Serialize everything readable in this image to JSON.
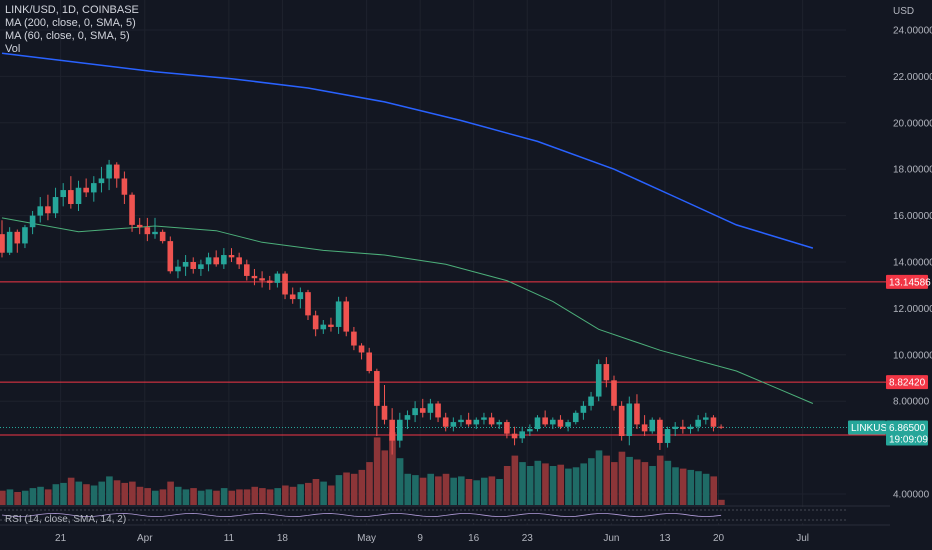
{
  "legend": {
    "symbol": "LINK/USD, 1D, COINBASE",
    "ma200": "MA (200, close, 0, SMA, 5)",
    "ma60": "MA (60, close, 0, SMA, 5)",
    "vol": "Vol"
  },
  "rsi_label": "RSI (14, close, SMA, 14, 2)",
  "colors": {
    "background": "#131722",
    "up": "#26a69a",
    "down": "#ef5350",
    "vol_up": "#1f6b66",
    "vol_down": "#8c3538",
    "ma200": "#2962ff",
    "ma60": "#4caf7a",
    "hline": "#f23645",
    "last_price": "#26a69a"
  },
  "chart_data": {
    "type": "candlestick",
    "currency": "USD",
    "y_ticks": [
      "24.00000",
      "22.00000",
      "20.00000",
      "18.00000",
      "16.00000",
      "14.00000",
      "12.00000",
      "10.00000",
      "8.00000",
      "4.00000"
    ],
    "ylim": [
      3.4,
      24.8
    ],
    "x_ticks": [
      "21",
      "Apr",
      "11",
      "18",
      "May",
      "9",
      "16",
      "23",
      "Jun",
      "13",
      "20",
      "Jul"
    ],
    "horizontal_levels": [
      {
        "value": 13.14586,
        "label": "13.14586"
      },
      {
        "value": 8.8242,
        "label": "8.82420"
      },
      {
        "value": 6.54464,
        "label": "6.54464"
      }
    ],
    "last_price": {
      "symbol": "LINKUSD",
      "value": 6.865,
      "label": "6.86500",
      "countdown": "19:09:09"
    },
    "candles": [
      [
        15.2,
        15.8,
        14.2,
        14.4
      ],
      [
        14.4,
        15.5,
        14.3,
        15.3
      ],
      [
        15.3,
        15.4,
        14.4,
        14.8
      ],
      [
        14.8,
        15.6,
        14.6,
        15.5
      ],
      [
        15.5,
        16.2,
        15.2,
        16.0
      ],
      [
        16.0,
        16.8,
        15.7,
        16.4
      ],
      [
        16.4,
        16.9,
        15.8,
        16.1
      ],
      [
        16.1,
        17.2,
        15.9,
        16.8
      ],
      [
        16.8,
        17.4,
        16.4,
        17.1
      ],
      [
        17.1,
        17.7,
        16.3,
        16.5
      ],
      [
        16.5,
        17.5,
        16.2,
        17.2
      ],
      [
        17.2,
        17.6,
        16.8,
        17.0
      ],
      [
        17.0,
        17.7,
        16.6,
        17.4
      ],
      [
        17.4,
        18.1,
        17.0,
        17.6
      ],
      [
        17.6,
        18.4,
        17.1,
        18.2
      ],
      [
        18.2,
        18.3,
        17.2,
        17.6
      ],
      [
        17.6,
        17.9,
        16.5,
        16.9
      ],
      [
        16.9,
        17.0,
        15.3,
        15.6
      ],
      [
        15.6,
        15.9,
        15.2,
        15.5
      ],
      [
        15.5,
        15.9,
        14.9,
        15.2
      ],
      [
        15.2,
        15.9,
        15.0,
        15.3
      ],
      [
        15.3,
        15.4,
        14.8,
        14.9
      ],
      [
        14.9,
        15.1,
        13.5,
        13.6
      ],
      [
        13.6,
        14.1,
        13.3,
        13.8
      ],
      [
        13.8,
        14.3,
        13.4,
        14.0
      ],
      [
        14.0,
        14.2,
        13.5,
        13.7
      ],
      [
        13.7,
        14.1,
        13.4,
        13.9
      ],
      [
        13.9,
        14.4,
        13.6,
        14.2
      ],
      [
        14.2,
        14.5,
        13.8,
        13.9
      ],
      [
        13.9,
        14.6,
        13.7,
        14.3
      ],
      [
        14.3,
        14.6,
        14.0,
        14.2
      ],
      [
        14.2,
        14.4,
        13.7,
        13.9
      ],
      [
        13.9,
        14.1,
        13.2,
        13.4
      ],
      [
        13.4,
        13.7,
        13.0,
        13.3
      ],
      [
        13.3,
        13.6,
        12.9,
        13.2
      ],
      [
        13.2,
        13.4,
        12.8,
        13.1
      ],
      [
        13.1,
        13.6,
        12.9,
        13.5
      ],
      [
        13.5,
        13.6,
        12.4,
        12.6
      ],
      [
        12.6,
        12.9,
        12.2,
        12.4
      ],
      [
        12.4,
        12.9,
        12.0,
        12.7
      ],
      [
        12.7,
        12.8,
        11.5,
        11.7
      ],
      [
        11.7,
        11.9,
        10.8,
        11.1
      ],
      [
        11.1,
        11.5,
        10.9,
        11.3
      ],
      [
        11.3,
        11.6,
        11.0,
        11.2
      ],
      [
        11.2,
        12.5,
        10.9,
        12.3
      ],
      [
        12.3,
        12.5,
        10.8,
        11.0
      ],
      [
        11.0,
        11.2,
        10.2,
        10.4
      ],
      [
        10.4,
        10.5,
        9.8,
        10.1
      ],
      [
        10.1,
        10.3,
        9.2,
        9.3
      ],
      [
        9.3,
        9.4,
        6.5,
        7.8
      ],
      [
        7.8,
        8.7,
        7.0,
        7.2
      ],
      [
        7.2,
        7.7,
        5.7,
        6.3
      ],
      [
        6.3,
        7.5,
        6.0,
        7.2
      ],
      [
        7.2,
        7.6,
        6.8,
        7.4
      ],
      [
        7.4,
        8.0,
        7.1,
        7.7
      ],
      [
        7.7,
        8.1,
        7.3,
        7.5
      ],
      [
        7.5,
        8.1,
        7.2,
        7.9
      ],
      [
        7.9,
        8.0,
        7.1,
        7.3
      ],
      [
        7.3,
        7.5,
        6.7,
        6.9
      ],
      [
        6.9,
        7.3,
        6.7,
        7.1
      ],
      [
        7.1,
        7.4,
        6.9,
        7.2
      ],
      [
        7.2,
        7.5,
        6.9,
        7.0
      ],
      [
        7.0,
        7.3,
        6.8,
        7.2
      ],
      [
        7.2,
        7.5,
        7.0,
        7.3
      ],
      [
        7.3,
        7.5,
        6.9,
        7.0
      ],
      [
        7.0,
        7.2,
        6.8,
        7.1
      ],
      [
        7.1,
        7.2,
        6.4,
        6.6
      ],
      [
        6.6,
        6.9,
        6.1,
        6.4
      ],
      [
        6.4,
        6.9,
        6.2,
        6.7
      ],
      [
        6.7,
        7.0,
        6.5,
        6.8
      ],
      [
        6.8,
        7.4,
        6.7,
        7.3
      ],
      [
        7.3,
        7.6,
        6.9,
        7.0
      ],
      [
        7.0,
        7.3,
        6.8,
        7.2
      ],
      [
        7.2,
        7.4,
        6.8,
        6.9
      ],
      [
        6.9,
        7.2,
        6.7,
        7.1
      ],
      [
        7.1,
        7.6,
        7.0,
        7.5
      ],
      [
        7.5,
        8.0,
        7.2,
        7.8
      ],
      [
        7.8,
        8.4,
        7.6,
        8.2
      ],
      [
        8.2,
        9.8,
        8.0,
        9.6
      ],
      [
        9.6,
        9.9,
        8.6,
        8.9
      ],
      [
        8.9,
        9.1,
        7.6,
        7.8
      ],
      [
        7.8,
        8.0,
        6.3,
        6.5
      ],
      [
        6.5,
        8.2,
        6.1,
        7.9
      ],
      [
        7.9,
        8.3,
        6.8,
        7.0
      ],
      [
        7.0,
        7.4,
        6.5,
        6.7
      ],
      [
        6.7,
        7.3,
        6.6,
        7.2
      ],
      [
        7.2,
        7.3,
        5.9,
        6.2
      ],
      [
        6.2,
        6.9,
        6.0,
        6.8
      ],
      [
        6.8,
        7.1,
        6.5,
        6.9
      ],
      [
        6.9,
        7.2,
        6.6,
        6.8
      ],
      [
        6.8,
        7.0,
        6.6,
        6.9
      ],
      [
        6.9,
        7.4,
        6.7,
        7.2
      ],
      [
        7.2,
        7.5,
        7.0,
        7.3
      ],
      [
        7.3,
        7.4,
        6.7,
        6.9
      ],
      [
        6.9,
        7.0,
        6.8,
        6.87
      ]
    ],
    "volume": [
      1.1,
      1.2,
      1.0,
      1.1,
      1.3,
      1.4,
      1.2,
      1.6,
      1.7,
      2.1,
      1.8,
      1.6,
      1.5,
      1.8,
      2.2,
      1.9,
      1.7,
      1.8,
      1.4,
      1.3,
      1.1,
      1.2,
      1.8,
      1.4,
      1.2,
      1.3,
      1.1,
      1.2,
      1.1,
      1.3,
      1.1,
      1.2,
      1.2,
      1.4,
      1.3,
      1.2,
      1.3,
      1.5,
      1.4,
      1.6,
      1.7,
      2.0,
      1.8,
      1.5,
      2.3,
      2.5,
      2.4,
      2.7,
      3.3,
      5.2,
      4.2,
      5.6,
      3.6,
      2.4,
      2.3,
      2.1,
      2.4,
      2.2,
      2.4,
      2.1,
      2.2,
      2.0,
      1.9,
      2.1,
      2.2,
      2.0,
      3.0,
      3.8,
      3.3,
      3.0,
      3.4,
      3.2,
      3.0,
      3.1,
      2.8,
      2.9,
      3.2,
      3.6,
      4.2,
      3.8,
      3.3,
      4.1,
      3.7,
      3.5,
      3.3,
      3.0,
      3.8,
      3.4,
      2.9,
      2.8,
      2.7,
      2.6,
      2.4,
      2.2,
      0.4
    ],
    "ma200": [
      [
        0,
        23.0
      ],
      [
        10,
        22.6
      ],
      [
        20,
        22.2
      ],
      [
        30,
        21.9
      ],
      [
        40,
        21.5
      ],
      [
        50,
        20.9
      ],
      [
        60,
        20.1
      ],
      [
        70,
        19.2
      ],
      [
        80,
        18.0
      ],
      [
        88,
        16.8
      ],
      [
        96,
        15.6
      ],
      [
        106,
        14.6
      ]
    ],
    "ma60": [
      [
        0,
        15.9
      ],
      [
        10,
        15.3
      ],
      [
        20,
        15.55
      ],
      [
        28,
        15.35
      ],
      [
        34,
        14.85
      ],
      [
        42,
        14.5
      ],
      [
        50,
        14.3
      ],
      [
        58,
        13.9
      ],
      [
        66,
        13.2
      ],
      [
        72,
        12.3
      ],
      [
        78,
        11.1
      ],
      [
        86,
        10.2
      ],
      [
        96,
        9.3
      ],
      [
        106,
        7.9
      ]
    ]
  }
}
